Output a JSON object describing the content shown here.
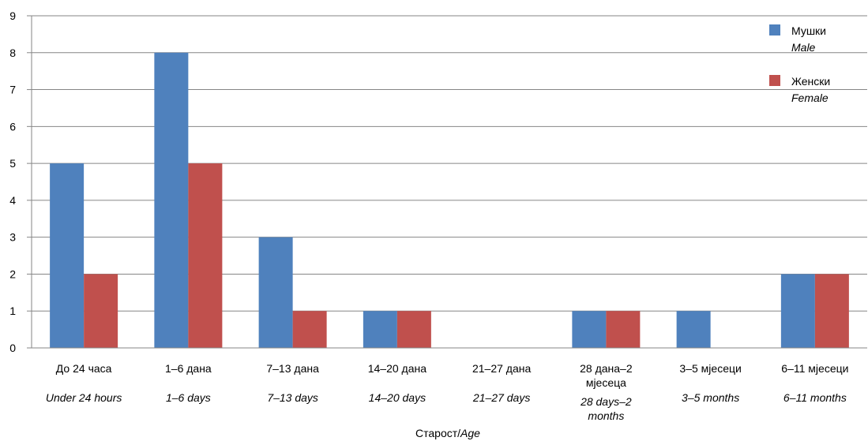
{
  "chart_data": {
    "type": "bar",
    "categories": [
      {
        "sr": "До 24 часа",
        "en": "Under 24 hours"
      },
      {
        "sr": "1–6 дана",
        "en": "1–6 days"
      },
      {
        "sr": "7–13 дана",
        "en": "7–13 days"
      },
      {
        "sr": "14–20 дана",
        "en": "14–20 days"
      },
      {
        "sr": "21–27 дана",
        "en": "21–27 days"
      },
      {
        "sr": [
          "28 дана–2",
          "мјесеца"
        ],
        "en": [
          "28 days–2",
          "months"
        ]
      },
      {
        "sr": "3–5 мјесеци",
        "en": "3–5 months"
      },
      {
        "sr": "6–11 мјесеци",
        "en": "6–11 months"
      }
    ],
    "series": [
      {
        "name": "Мушки",
        "name_en": "Male",
        "color": "#4f81bd",
        "values": [
          5,
          8,
          3,
          1,
          0,
          1,
          1,
          2
        ]
      },
      {
        "name": "Женски",
        "name_en": "Female",
        "color": "#c0504d",
        "values": [
          2,
          5,
          1,
          1,
          0,
          1,
          0,
          2
        ]
      }
    ],
    "xlabel": "Старост/",
    "xlabel_en": "Age",
    "ylabel": "",
    "ylim": [
      0,
      9
    ],
    "yticks": [
      0,
      1,
      2,
      3,
      4,
      5,
      6,
      7,
      8,
      9
    ],
    "grid": true,
    "legend_position": "top-right"
  }
}
